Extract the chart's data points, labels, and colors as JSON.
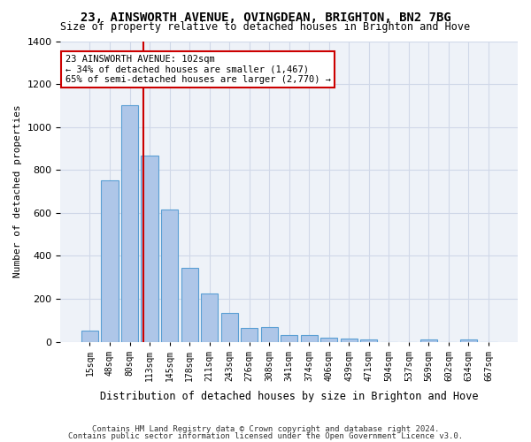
{
  "title1": "23, AINSWORTH AVENUE, OVINGDEAN, BRIGHTON, BN2 7BG",
  "title2": "Size of property relative to detached houses in Brighton and Hove",
  "xlabel": "Distribution of detached houses by size in Brighton and Hove",
  "ylabel": "Number of detached properties",
  "footer1": "Contains HM Land Registry data © Crown copyright and database right 2024.",
  "footer2": "Contains public sector information licensed under the Open Government Licence v3.0.",
  "bar_labels": [
    "15sqm",
    "48sqm",
    "80sqm",
    "113sqm",
    "145sqm",
    "178sqm",
    "211sqm",
    "243sqm",
    "276sqm",
    "308sqm",
    "341sqm",
    "374sqm",
    "406sqm",
    "439sqm",
    "471sqm",
    "504sqm",
    "537sqm",
    "569sqm",
    "602sqm",
    "634sqm",
    "667sqm"
  ],
  "bar_values": [
    50,
    750,
    1100,
    865,
    615,
    345,
    225,
    135,
    65,
    70,
    30,
    30,
    20,
    15,
    10,
    0,
    0,
    10,
    0,
    10,
    0
  ],
  "bar_color": "#aec6e8",
  "bar_edge_color": "#5a9fd4",
  "property_line_x": 102,
  "property_line_label": "23 AINSWORTH AVENUE: 102sqm",
  "annotation_line1": "← 34% of detached houses are smaller (1,467)",
  "annotation_line2": "65% of semi-detached houses are larger (2,770) →",
  "annotation_box_color": "#ffffff",
  "annotation_box_edge": "#cc0000",
  "line_color": "#cc0000",
  "grid_color": "#d0d8e8",
  "bg_color": "#eef2f8",
  "ylim": [
    0,
    1400
  ],
  "bin_width": 33
}
